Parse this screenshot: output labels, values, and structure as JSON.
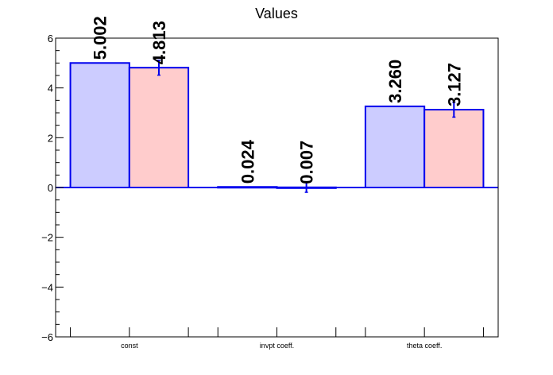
{
  "chart_data": {
    "type": "bar",
    "title": "Values",
    "categories": [
      "const",
      "invpt coeff.",
      "theta coeff."
    ],
    "series": [
      {
        "values": [
          5.002,
          0.024,
          3.26
        ],
        "labels": [
          "5.002",
          "0.024",
          "3.260"
        ],
        "errors": [
          0,
          0,
          0
        ]
      },
      {
        "values": [
          4.813,
          0.007,
          3.127
        ],
        "labels": [
          "4.813",
          "0.007",
          "3.127"
        ],
        "errors": [
          0.3,
          0.2,
          0.3
        ]
      }
    ],
    "ylim": [
      -6,
      6
    ],
    "yticks": [
      -6,
      -4,
      -2,
      0,
      2,
      4,
      6
    ],
    "ytick_labels": [
      "−6",
      "−4",
      "−2",
      "0",
      "2",
      "4",
      "6"
    ],
    "xlabel": "",
    "ylabel": "",
    "grid": false,
    "colors": {
      "series_fill": [
        "#ccccff",
        "#ffcccc"
      ],
      "bar_edge": "#0000ee",
      "baseline": "#0000ee",
      "frame": "#000000"
    }
  }
}
